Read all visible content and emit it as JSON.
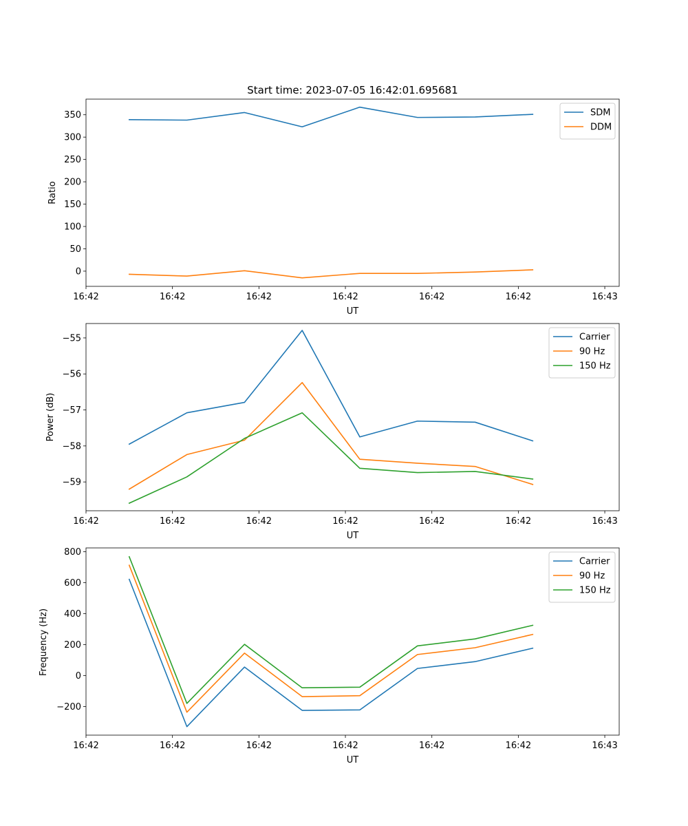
{
  "chart_data": [
    {
      "type": "line",
      "title": "Start time: 2023-07-05 16:42:01.695681",
      "xlabel": "UT",
      "ylabel": "Ratio",
      "x": [
        0,
        1,
        2,
        3,
        4,
        5,
        6,
        7
      ],
      "xlim": [
        -0.75,
        8.5
      ],
      "x_ticks": [
        -0.75,
        0.75,
        2.25,
        3.75,
        5.25,
        6.75,
        8.25
      ],
      "x_tick_labels": [
        "16:42",
        "16:42",
        "16:42",
        "16:42",
        "16:42",
        "16:42",
        "16:43"
      ],
      "ylim": [
        -34,
        385
      ],
      "y_ticks": [
        0,
        50,
        100,
        150,
        200,
        250,
        300,
        350
      ],
      "y_tick_labels": [
        "0",
        "50",
        "100",
        "150",
        "200",
        "250",
        "300",
        "350"
      ],
      "legend_position": "top-right",
      "series": [
        {
          "name": "SDM",
          "color": "#1f77b4",
          "values": [
            339,
            338,
            355,
            323,
            367,
            344,
            345,
            351
          ]
        },
        {
          "name": "DDM",
          "color": "#ff7f0e",
          "values": [
            -7,
            -11,
            1,
            -15,
            -5,
            -5,
            -2,
            3
          ]
        }
      ]
    },
    {
      "type": "line",
      "title": "",
      "xlabel": "UT",
      "ylabel": "Power (dB)",
      "x": [
        0,
        1,
        2,
        3,
        4,
        5,
        6,
        7
      ],
      "xlim": [
        -0.75,
        8.5
      ],
      "x_ticks": [
        -0.75,
        0.75,
        2.25,
        3.75,
        5.25,
        6.75,
        8.25
      ],
      "x_tick_labels": [
        "16:42",
        "16:42",
        "16:42",
        "16:42",
        "16:42",
        "16:42",
        "16:43"
      ],
      "ylim": [
        -59.8,
        -54.6
      ],
      "y_ticks": [
        -55,
        -56,
        -57,
        -58,
        -59
      ],
      "y_tick_labels": [
        "−55",
        "−56",
        "−57",
        "−58",
        "−59"
      ],
      "legend_position": "top-right",
      "series": [
        {
          "name": "Carrier",
          "color": "#1f77b4",
          "values": [
            -57.95,
            -57.08,
            -56.79,
            -54.79,
            -57.75,
            -57.31,
            -57.34,
            -57.86
          ]
        },
        {
          "name": "90 Hz",
          "color": "#ff7f0e",
          "values": [
            -59.2,
            -58.24,
            -57.84,
            -56.24,
            -58.37,
            -58.48,
            -58.57,
            -59.07
          ]
        },
        {
          "name": "150 Hz",
          "color": "#2ca02c",
          "values": [
            -59.59,
            -58.86,
            -57.79,
            -57.08,
            -58.62,
            -58.74,
            -58.71,
            -58.92
          ]
        }
      ]
    },
    {
      "type": "line",
      "title": "",
      "xlabel": "UT",
      "ylabel": "Frequency (Hz)",
      "x": [
        0,
        1,
        2,
        3,
        4,
        5,
        6,
        7
      ],
      "xlim": [
        -0.75,
        8.5
      ],
      "x_ticks": [
        -0.75,
        0.75,
        2.25,
        3.75,
        5.25,
        6.75,
        8.25
      ],
      "x_tick_labels": [
        "16:42",
        "16:42",
        "16:42",
        "16:42",
        "16:42",
        "16:42",
        "16:43"
      ],
      "ylim": [
        -385,
        825
      ],
      "y_ticks": [
        800,
        600,
        400,
        200,
        0,
        -200
      ],
      "y_tick_labels": [
        "800",
        "600",
        "400",
        "200",
        "0",
        "−200"
      ],
      "legend_position": "top-right",
      "series": [
        {
          "name": "Carrier",
          "color": "#1f77b4",
          "values": [
            622,
            -330,
            55,
            -225,
            -222,
            46,
            90,
            177
          ]
        },
        {
          "name": "90 Hz",
          "color": "#ff7f0e",
          "values": [
            713,
            -237,
            145,
            -136,
            -130,
            136,
            180,
            266
          ]
        },
        {
          "name": "150 Hz",
          "color": "#2ca02c",
          "values": [
            768,
            -180,
            202,
            -79,
            -75,
            192,
            237,
            325
          ]
        }
      ]
    }
  ]
}
